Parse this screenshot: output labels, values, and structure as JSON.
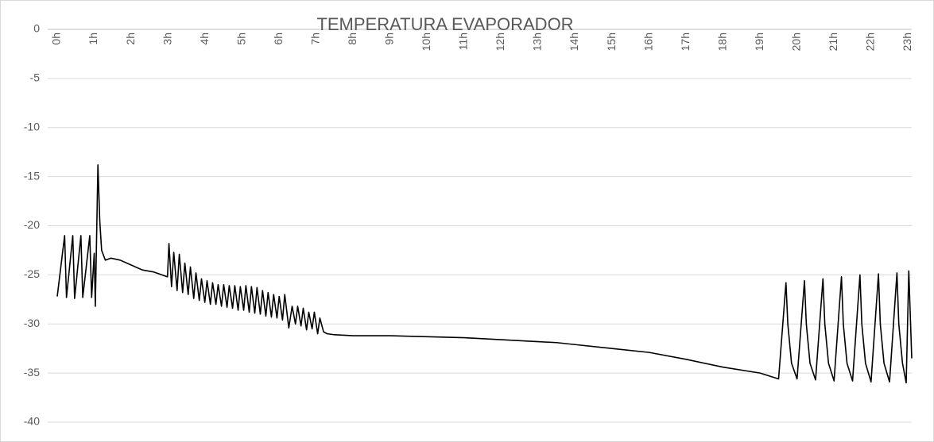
{
  "chart_data": {
    "type": "line",
    "title": "TEMPERATURA EVAPORADOR",
    "x": [
      0,
      0.2,
      0.25,
      0.42,
      0.47,
      0.64,
      0.69,
      0.88,
      0.93,
      1.0,
      1.03,
      1.1,
      1.15,
      1.2,
      1.3,
      1.45,
      1.7,
      2.0,
      2.3,
      2.6,
      2.98,
      3.02,
      3.09,
      3.15,
      3.24,
      3.3,
      3.39,
      3.45,
      3.54,
      3.6,
      3.69,
      3.75,
      3.84,
      3.9,
      3.99,
      4.05,
      4.14,
      4.2,
      4.29,
      4.35,
      4.44,
      4.5,
      4.59,
      4.65,
      4.74,
      4.8,
      4.89,
      4.95,
      5.04,
      5.1,
      5.19,
      5.25,
      5.34,
      5.4,
      5.49,
      5.55,
      5.64,
      5.7,
      5.79,
      5.85,
      5.94,
      6.0,
      6.09,
      6.15,
      6.26,
      6.35,
      6.44,
      6.5,
      6.59,
      6.65,
      6.74,
      6.8,
      6.89,
      6.95,
      7.04,
      7.1,
      7.2,
      7.3,
      7.5,
      8,
      9,
      10,
      11,
      12,
      13,
      13.5,
      14,
      15,
      16,
      17,
      18,
      19,
      19.5,
      19.7,
      19.75,
      19.85,
      20.0,
      20.2,
      20.25,
      20.35,
      20.5,
      20.7,
      20.75,
      20.85,
      21.0,
      21.2,
      21.25,
      21.35,
      21.5,
      21.7,
      21.75,
      21.85,
      22.0,
      22.2,
      22.25,
      22.35,
      22.5,
      22.7,
      22.75,
      22.85,
      22.95,
      23.02,
      23.1
    ],
    "series": [
      {
        "name": "TEMPERATURA EVAPORADOR",
        "color": "#000000",
        "values": [
          -27.2,
          -21.0,
          -27.3,
          -21.0,
          -27.4,
          -21.0,
          -27.3,
          -21.0,
          -27.3,
          -22.8,
          -28.2,
          -13.8,
          -19.5,
          -22.5,
          -23.5,
          -23.3,
          -23.5,
          -24.0,
          -24.5,
          -24.7,
          -25.2,
          -21.8,
          -26.2,
          -22.7,
          -26.6,
          -22.9,
          -26.8,
          -23.8,
          -27.0,
          -24.2,
          -27.4,
          -24.8,
          -27.6,
          -25.4,
          -27.8,
          -25.6,
          -28.0,
          -25.8,
          -28.0,
          -26.0,
          -28.2,
          -26.0,
          -28.3,
          -26.1,
          -28.4,
          -26.1,
          -28.6,
          -26.2,
          -28.6,
          -26.1,
          -28.8,
          -26.2,
          -28.9,
          -26.3,
          -29.0,
          -26.6,
          -29.2,
          -26.8,
          -29.3,
          -27.0,
          -29.4,
          -27.2,
          -29.6,
          -27.0,
          -30.4,
          -28.2,
          -30.0,
          -28.2,
          -30.2,
          -28.4,
          -30.6,
          -28.8,
          -30.5,
          -28.8,
          -31.0,
          -29.4,
          -30.8,
          -31.0,
          -31.1,
          -31.2,
          -31.2,
          -31.3,
          -31.4,
          -31.6,
          -31.8,
          -31.9,
          -32.1,
          -32.5,
          -32.9,
          -33.6,
          -34.4,
          -35.0,
          -35.6,
          -25.8,
          -30,
          -34,
          -35.6,
          -25.6,
          -30,
          -34,
          -35.7,
          -25.4,
          -30,
          -34,
          -35.8,
          -25.2,
          -30,
          -34,
          -35.8,
          -25.0,
          -30,
          -34,
          -35.9,
          -24.9,
          -30,
          -34,
          -35.9,
          -24.8,
          -30,
          -34,
          -36.0,
          -24.6,
          -33.5
        ]
      }
    ],
    "xlim": [
      0,
      23.1
    ],
    "xticks": [
      {
        "value": 0,
        "label": "0h"
      },
      {
        "value": 1,
        "label": "1h"
      },
      {
        "value": 2,
        "label": "2h"
      },
      {
        "value": 3,
        "label": "3h"
      },
      {
        "value": 4,
        "label": "4h"
      },
      {
        "value": 5,
        "label": "5h"
      },
      {
        "value": 6,
        "label": "6h"
      },
      {
        "value": 7,
        "label": "7h"
      },
      {
        "value": 8,
        "label": "8h"
      },
      {
        "value": 9,
        "label": "9h"
      },
      {
        "value": 10,
        "label": "10h"
      },
      {
        "value": 11,
        "label": "11h"
      },
      {
        "value": 12,
        "label": "12h"
      },
      {
        "value": 13,
        "label": "13h"
      },
      {
        "value": 14,
        "label": "14h"
      },
      {
        "value": 15,
        "label": "15h"
      },
      {
        "value": 16,
        "label": "16h"
      },
      {
        "value": 17,
        "label": "17h"
      },
      {
        "value": 18,
        "label": "18h"
      },
      {
        "value": 19,
        "label": "19h"
      },
      {
        "value": 20,
        "label": "20h"
      },
      {
        "value": 21,
        "label": "21h"
      },
      {
        "value": 22,
        "label": "22h"
      },
      {
        "value": 23,
        "label": "23h"
      }
    ],
    "ylim": [
      -40,
      0
    ],
    "yticks": [
      0,
      -5,
      -10,
      -15,
      -20,
      -25,
      -30,
      -35,
      -40
    ],
    "grid": true
  }
}
